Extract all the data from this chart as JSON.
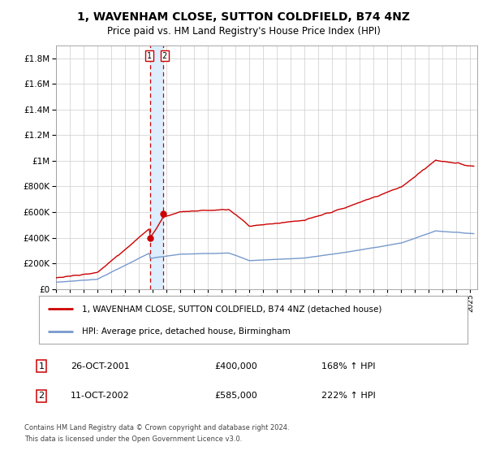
{
  "title": "1, WAVENHAM CLOSE, SUTTON COLDFIELD, B74 4NZ",
  "subtitle": "Price paid vs. HM Land Registry's House Price Index (HPI)",
  "title_fontsize": 10,
  "subtitle_fontsize": 8.5,
  "background_color": "#ffffff",
  "grid_color": "#cccccc",
  "sale1_date_num": 2001.82,
  "sale1_price": 400000,
  "sale1_label": "1",
  "sale1_date_str": "26-OCT-2001",
  "sale2_date_num": 2002.78,
  "sale2_price": 585000,
  "sale2_label": "2",
  "sale2_date_str": "11-OCT-2002",
  "hpi_color": "#7799cc",
  "price_color": "#cc0000",
  "marker_color": "#cc0000",
  "vshade_color": "#ddeeff",
  "vline_color": "#cc0000",
  "ylim": [
    0,
    1900000
  ],
  "xlim": [
    1995.0,
    2025.5
  ],
  "legend_label_price": "1, WAVENHAM CLOSE, SUTTON COLDFIELD, B74 4NZ (detached house)",
  "legend_label_hpi": "HPI: Average price, detached house, Birmingham",
  "footer1": "Contains HM Land Registry data © Crown copyright and database right 2024.",
  "footer2": "This data is licensed under the Open Government Licence v3.0.",
  "ratio_sale1": 1.68,
  "ratio_sale2": 2.22
}
